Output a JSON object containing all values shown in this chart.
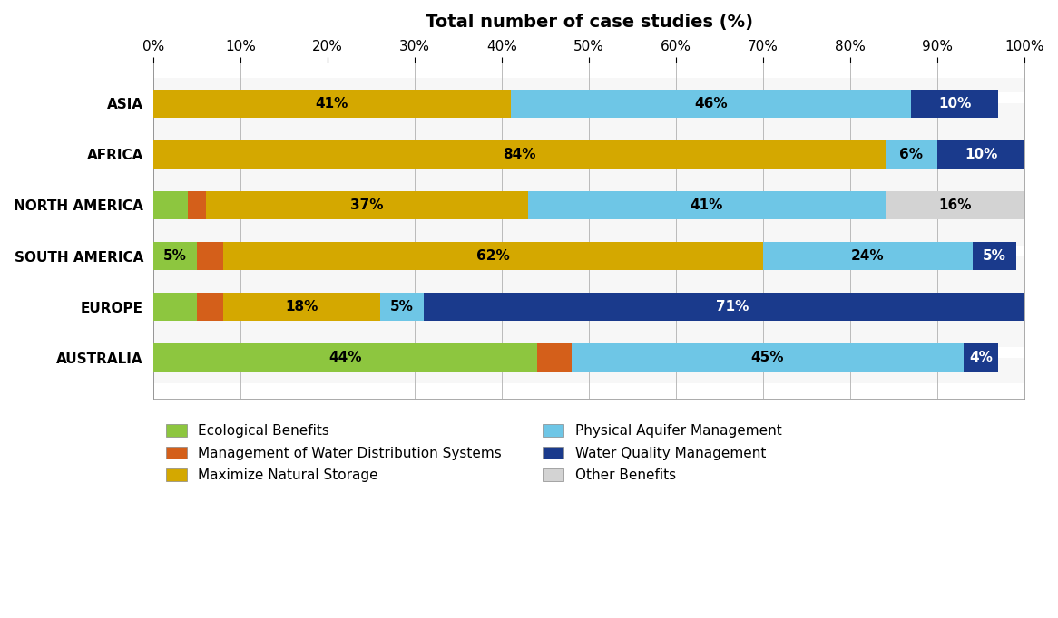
{
  "title": "Total number of case studies (%)",
  "categories": [
    "ASIA",
    "AFRICA",
    "NORTH AMERICA",
    "SOUTH AMERICA",
    "EUROPE",
    "AUSTRALIA"
  ],
  "series_order": [
    "Ecological Benefits",
    "Management of Water Distribution Systems",
    "Maximize Natural Storage",
    "Physical Aquifer Management",
    "Water Quality Management",
    "Other Benefits"
  ],
  "series": {
    "Ecological Benefits": [
      0,
      0,
      4,
      5,
      5,
      44
    ],
    "Management of Water Distribution Systems": [
      0,
      0,
      2,
      3,
      3,
      4
    ],
    "Maximize Natural Storage": [
      41,
      84,
      37,
      62,
      18,
      0
    ],
    "Physical Aquifer Management": [
      46,
      6,
      41,
      24,
      5,
      45
    ],
    "Water Quality Management": [
      10,
      10,
      0,
      5,
      71,
      4
    ],
    "Other Benefits": [
      0,
      0,
      16,
      0,
      0,
      0
    ]
  },
  "colors": {
    "Ecological Benefits": "#8dc63f",
    "Management of Water Distribution Systems": "#d45f1a",
    "Maximize Natural Storage": "#d4a800",
    "Physical Aquifer Management": "#6ec6e6",
    "Water Quality Management": "#1a3a8c",
    "Other Benefits": "#d3d3d3"
  },
  "bar_labels": {
    "ASIA": {
      "Maximize Natural Storage": "41%",
      "Physical Aquifer Management": "46%",
      "Water Quality Management": "10%"
    },
    "AFRICA": {
      "Maximize Natural Storage": "84%",
      "Physical Aquifer Management": "6%",
      "Water Quality Management": "10%"
    },
    "NORTH AMERICA": {
      "Maximize Natural Storage": "37%",
      "Physical Aquifer Management": "41%",
      "Other Benefits": "16%"
    },
    "SOUTH AMERICA": {
      "Ecological Benefits": "5%",
      "Maximize Natural Storage": "62%",
      "Physical Aquifer Management": "24%",
      "Water Quality Management": "5%"
    },
    "EUROPE": {
      "Maximize Natural Storage": "18%",
      "Physical Aquifer Management": "5%",
      "Water Quality Management": "71%"
    },
    "AUSTRALIA": {
      "Ecological Benefits": "44%",
      "Physical Aquifer Management": "45%",
      "Water Quality Management": "4%"
    }
  },
  "label_colors": {
    "Ecological Benefits": "#000000",
    "Management of Water Distribution Systems": "#000000",
    "Maximize Natural Storage": "#000000",
    "Physical Aquifer Management": "#000000",
    "Water Quality Management": "#ffffff",
    "Other Benefits": "#000000"
  },
  "xlim": [
    0,
    100
  ],
  "xticks": [
    0,
    10,
    20,
    30,
    40,
    50,
    60,
    70,
    80,
    90,
    100
  ],
  "xtick_labels": [
    "0%",
    "10%",
    "20%",
    "30%",
    "40%",
    "50%",
    "60%",
    "70%",
    "80%",
    "90%",
    "100%"
  ],
  "background_color": "#ffffff",
  "plot_bg_color": "#ffffff",
  "hatch_color": "#cccccc",
  "bar_height": 0.55,
  "title_fontsize": 14,
  "tick_fontsize": 11,
  "label_fontsize": 11,
  "legend_fontsize": 11
}
